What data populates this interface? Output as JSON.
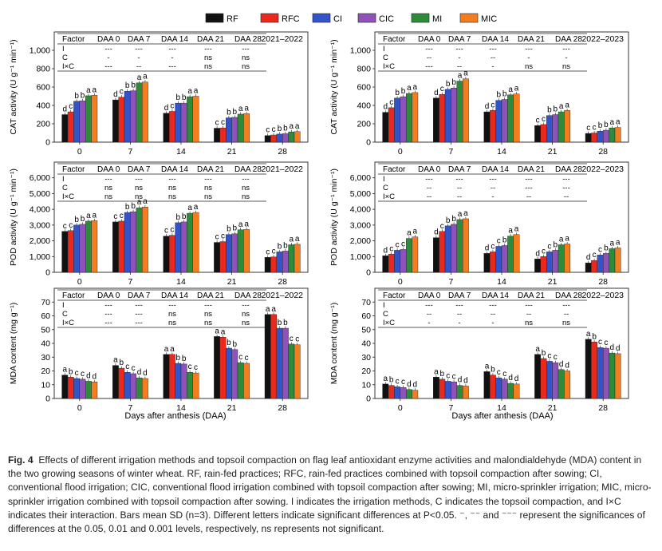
{
  "legend": [
    {
      "key": "RF",
      "color": "#111111"
    },
    {
      "key": "RFC",
      "color": "#e8291c"
    },
    {
      "key": "CI",
      "color": "#3353c8"
    },
    {
      "key": "CIC",
      "color": "#8e52b8"
    },
    {
      "key": "MI",
      "color": "#2e8b3a"
    },
    {
      "key": "MIC",
      "color": "#f47d20"
    }
  ],
  "x_common_label": "Days after anthesis (DAA)",
  "sig_table_headers": [
    "Factor",
    "DAA 0",
    "DAA 7",
    "DAA 14",
    "DAA 21",
    "DAA 28"
  ],
  "chart_data": [
    {
      "id": "cat-2021",
      "type": "bar",
      "year": "2021–2022",
      "ylabel": "CAT activity (U g⁻¹ min⁻¹)",
      "ylim": [
        0,
        1200
      ],
      "yticks": [
        0,
        200,
        400,
        600,
        800,
        "1,000"
      ],
      "yvals": [
        0,
        200,
        400,
        600,
        800,
        1000
      ],
      "categories": [
        "0",
        "7",
        "14",
        "21",
        "28"
      ],
      "values": [
        [
          300,
          330,
          445,
          450,
          505,
          510
        ],
        [
          460,
          490,
          555,
          560,
          645,
          655
        ],
        [
          315,
          335,
          425,
          425,
          495,
          500
        ],
        [
          152,
          155,
          265,
          270,
          305,
          310
        ],
        [
          72,
          78,
          88,
          92,
          112,
          115
        ]
      ],
      "letters": [
        [
          "d",
          "c",
          "b",
          "b",
          "a",
          "a"
        ],
        [
          "d",
          "c",
          "b",
          "b",
          "a",
          "a"
        ],
        [
          "d",
          "c",
          "b",
          "b",
          "a",
          "a"
        ],
        [
          "c",
          "c",
          "b",
          "b",
          "a",
          "a"
        ],
        [
          "c",
          "c",
          "b",
          "b",
          "a",
          "a"
        ]
      ],
      "sig": [
        [
          "I",
          "---",
          "---",
          "---",
          "---",
          "---"
        ],
        [
          "C",
          "-",
          "-",
          "-",
          "ns",
          "ns"
        ],
        [
          "I×C",
          "---",
          "--",
          "---",
          "ns",
          "ns"
        ]
      ]
    },
    {
      "id": "cat-2022",
      "type": "bar",
      "year": "2022–2023",
      "ylabel": "CAT activity (U g⁻¹ min⁻¹)",
      "ylim": [
        0,
        1200
      ],
      "yticks": [
        0,
        200,
        400,
        600,
        800,
        "1,000"
      ],
      "yvals": [
        0,
        200,
        400,
        600,
        800,
        1000
      ],
      "categories": [
        "0",
        "7",
        "14",
        "21",
        "28"
      ],
      "values": [
        [
          325,
          375,
          480,
          495,
          530,
          540
        ],
        [
          480,
          520,
          575,
          590,
          665,
          690
        ],
        [
          330,
          345,
          455,
          465,
          515,
          525
        ],
        [
          180,
          192,
          290,
          300,
          330,
          345
        ],
        [
          95,
          100,
          120,
          130,
          155,
          160
        ]
      ],
      "letters": [
        [
          "d",
          "c",
          "b",
          "b",
          "a",
          "a"
        ],
        [
          "d",
          "c",
          "b",
          "b",
          "a",
          "a"
        ],
        [
          "d",
          "c",
          "b",
          "b",
          "a",
          "a"
        ],
        [
          "c",
          "c",
          "b",
          "b",
          "a",
          "a"
        ],
        [
          "c",
          "c",
          "b",
          "b",
          "a",
          "a"
        ]
      ],
      "sig": [
        [
          "I",
          "---",
          "---",
          "---",
          "---",
          "---"
        ],
        [
          "C",
          "--",
          "-",
          "--",
          "-",
          "-"
        ],
        [
          "I×C",
          "---",
          "--",
          "-",
          "ns",
          "ns"
        ]
      ]
    },
    {
      "id": "pod-2021",
      "type": "bar",
      "year": "2021–2022",
      "ylabel": "POD activity (U g⁻¹ min⁻¹)",
      "ylim": [
        0,
        7000
      ],
      "yticks": [
        0,
        "1,000",
        "2,000",
        "3,000",
        "4,000",
        "5,000",
        "6,000"
      ],
      "yvals": [
        0,
        1000,
        2000,
        3000,
        4000,
        5000,
        6000
      ],
      "categories": [
        "0",
        "7",
        "14",
        "21",
        "28"
      ],
      "values": [
        [
          2600,
          2650,
          3000,
          3050,
          3250,
          3280
        ],
        [
          3200,
          3250,
          3800,
          3850,
          4100,
          4150
        ],
        [
          2300,
          2350,
          3150,
          3200,
          3750,
          3800
        ],
        [
          1900,
          1950,
          2400,
          2450,
          2700,
          2720
        ],
        [
          950,
          980,
          1300,
          1350,
          1750,
          1780
        ]
      ],
      "letters": [
        [
          "c",
          "c",
          "b",
          "b",
          "a",
          "a"
        ],
        [
          "c",
          "c",
          "b",
          "b",
          "a",
          "a"
        ],
        [
          "c",
          "c",
          "b",
          "b",
          "a",
          "a"
        ],
        [
          "c",
          "c",
          "b",
          "b",
          "a",
          "a"
        ],
        [
          "c",
          "c",
          "b",
          "b",
          "a",
          "a"
        ]
      ],
      "sig": [
        [
          "I",
          "---",
          "---",
          "---",
          "---",
          "---"
        ],
        [
          "C",
          "ns",
          "ns",
          "ns",
          "ns",
          "ns"
        ],
        [
          "I×C",
          "ns",
          "ns",
          "ns",
          "ns",
          "ns"
        ]
      ]
    },
    {
      "id": "pod-2022",
      "type": "bar",
      "year": "2022–2023",
      "ylabel": "POD activity (U g⁻¹ min⁻¹)",
      "ylim": [
        0,
        7000
      ],
      "yticks": [
        0,
        "1,000",
        "2,000",
        "3,000",
        "4,000",
        "5,000",
        "6,000"
      ],
      "yvals": [
        0,
        1000,
        2000,
        3000,
        4000,
        5000,
        6000
      ],
      "categories": [
        "0",
        "7",
        "14",
        "21",
        "28"
      ],
      "values": [
        [
          1050,
          1150,
          1400,
          1450,
          2150,
          2250
        ],
        [
          2200,
          2600,
          2950,
          3050,
          3350,
          3400
        ],
        [
          1200,
          1300,
          1650,
          1700,
          2300,
          2400
        ],
        [
          850,
          1000,
          1300,
          1400,
          1750,
          1800
        ],
        [
          600,
          750,
          1100,
          1200,
          1500,
          1550
        ]
      ],
      "letters": [
        [
          "d",
          "c",
          "c",
          "c",
          "a",
          "a"
        ],
        [
          "d",
          "c",
          "b",
          "b",
          "a",
          "a"
        ],
        [
          "d",
          "c",
          "c",
          "b",
          "a",
          "a"
        ],
        [
          "d",
          "c",
          "c",
          "b",
          "a",
          "a"
        ],
        [
          "d",
          "c",
          "c",
          "b",
          "a",
          "a"
        ]
      ],
      "sig": [
        [
          "I",
          "---",
          "---",
          "---",
          "---",
          "---"
        ],
        [
          "C",
          "--",
          "--",
          "--",
          "---",
          "---"
        ],
        [
          "I×C",
          "--",
          "--",
          "-",
          "--",
          "--"
        ]
      ]
    },
    {
      "id": "mda-2021",
      "type": "bar",
      "year": "2021–2022",
      "ylabel": "MDA content (mg g⁻¹)",
      "ylim": [
        0,
        80
      ],
      "yticks": [
        0,
        10,
        20,
        30,
        40,
        50,
        60,
        70
      ],
      "yvals": [
        0,
        10,
        20,
        30,
        40,
        50,
        60,
        70
      ],
      "categories": [
        "0",
        "7",
        "14",
        "21",
        "28"
      ],
      "values": [
        [
          17,
          15.5,
          14.5,
          14,
          12.5,
          12
        ],
        [
          24,
          22,
          19,
          18,
          15,
          14.5
        ],
        [
          32,
          32,
          25.5,
          25,
          19,
          18.5
        ],
        [
          45,
          44.5,
          36.5,
          35.5,
          26,
          25.5
        ],
        [
          61,
          61,
          51,
          51,
          39.5,
          39
        ]
      ],
      "letters": [
        [
          "a",
          "b",
          "c",
          "c",
          "d",
          "d"
        ],
        [
          "a",
          "b",
          "c",
          "c",
          "d",
          "d"
        ],
        [
          "a",
          "a",
          "b",
          "b",
          "c",
          "c"
        ],
        [
          "a",
          "a",
          "b",
          "b",
          "c",
          "c"
        ],
        [
          "a",
          "a",
          "b",
          "b",
          "c",
          "c"
        ]
      ],
      "sig": [
        [
          "I",
          "---",
          "---",
          "---",
          "---",
          "---"
        ],
        [
          "C",
          "---",
          "---",
          "ns",
          "ns",
          "ns"
        ],
        [
          "I×C",
          "---",
          "---",
          "ns",
          "ns",
          "ns"
        ]
      ]
    },
    {
      "id": "mda-2022",
      "type": "bar",
      "year": "2022–2023",
      "ylabel": "MDA content (mg g⁻¹)",
      "ylim": [
        0,
        80
      ],
      "yticks": [
        0,
        10,
        20,
        30,
        40,
        50,
        60,
        70
      ],
      "yvals": [
        0,
        10,
        20,
        30,
        40,
        50,
        60,
        70
      ],
      "categories": [
        "0",
        "7",
        "14",
        "21",
        "28"
      ],
      "values": [
        [
          10.5,
          9.5,
          8.5,
          8,
          6.5,
          6
        ],
        [
          15.5,
          14,
          12.5,
          12,
          9.5,
          9
        ],
        [
          19.5,
          17,
          15,
          14,
          11,
          10.5
        ],
        [
          32,
          29,
          27,
          26,
          21,
          20
        ],
        [
          43,
          41,
          37,
          36.5,
          33,
          32.5
        ]
      ],
      "letters": [
        [
          "a",
          "b",
          "c",
          "c",
          "d",
          "d"
        ],
        [
          "a",
          "b",
          "c",
          "c",
          "d",
          "d"
        ],
        [
          "a",
          "b",
          "c",
          "c",
          "d",
          "d"
        ],
        [
          "a",
          "b",
          "c",
          "c",
          "d",
          "d"
        ],
        [
          "a",
          "b",
          "c",
          "c",
          "d",
          "d"
        ]
      ],
      "sig": [
        [
          "I",
          "---",
          "---",
          "---",
          "---",
          "---"
        ],
        [
          "C",
          "--",
          "--",
          "--",
          "--",
          "--"
        ],
        [
          "I×C",
          "-",
          "-",
          "-",
          "ns",
          "ns"
        ]
      ]
    }
  ],
  "caption": {
    "label": "Fig. 4",
    "text": "Effects of different irrigation methods and topsoil compaction on flag leaf antioxidant enzyme activities and malondialdehyde (MDA) content in the two growing seasons of winter wheat.  RF, rain-fed practices; RFC, rain-fed practices combined with topsoil compaction after sowing; CI, conventional flood irrigation; CIC, conventional flood irrigation combined with topsoil compaction after sowing; MI, micro-sprinkler irrigation; MIC, micro-sprinkler irrigation combined with topsoil compaction after sowing.  I indicates the irrigation methods, C indicates the topsoil compaction, and I×C indicates their interaction.  Bars mean SD (n=3).  Different letters indicate significant differences at P<0.05.  ⁻, ⁻⁻ and ⁻⁻⁻ represent the significances of differences at the 0.05, 0.01 and 0.001 levels, respectively, ns represents not significant."
  }
}
